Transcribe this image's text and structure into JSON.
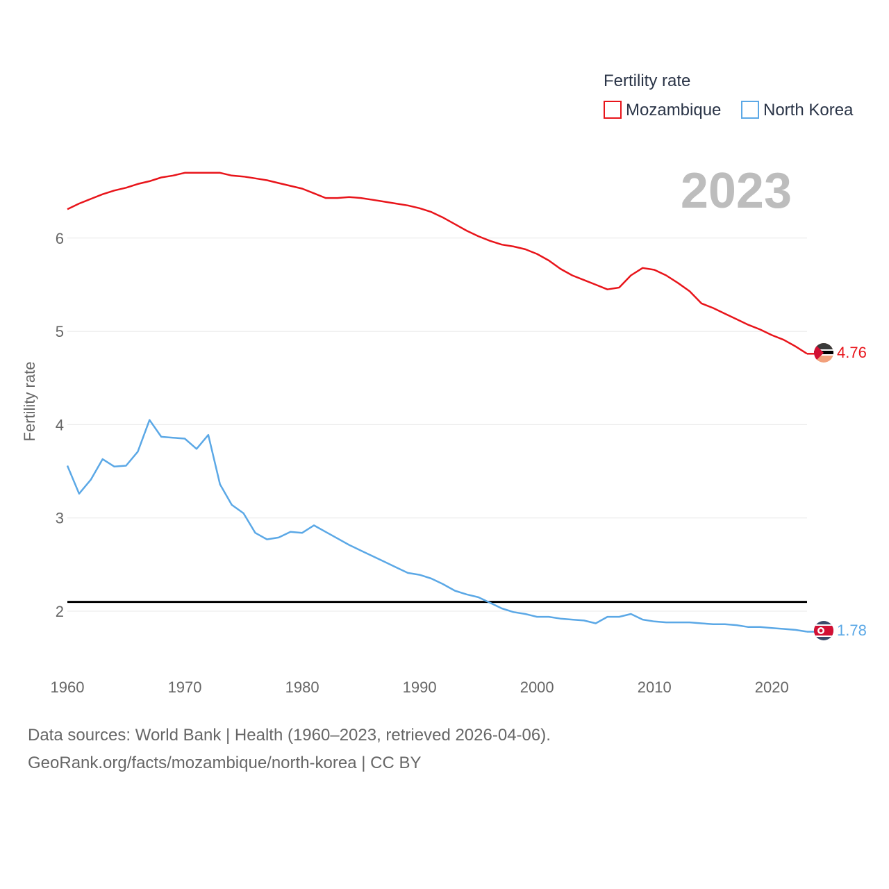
{
  "chart_data": {
    "type": "line",
    "title": "",
    "xlabel": "",
    "ylabel": "Fertility rate",
    "xlim": [
      1960,
      2023
    ],
    "ylim": [
      1.5,
      7.2
    ],
    "xticks": [
      1960,
      1970,
      1980,
      1990,
      2000,
      2010,
      2020
    ],
    "yticks": [
      2,
      3,
      4,
      5,
      6
    ],
    "reference_line": 2.1,
    "year_label": "2023",
    "legend_title": "Fertility rate",
    "x": [
      1960,
      1961,
      1962,
      1963,
      1964,
      1965,
      1966,
      1967,
      1968,
      1969,
      1970,
      1971,
      1972,
      1973,
      1974,
      1975,
      1976,
      1977,
      1978,
      1979,
      1980,
      1981,
      1982,
      1983,
      1984,
      1985,
      1986,
      1987,
      1988,
      1989,
      1990,
      1991,
      1992,
      1993,
      1994,
      1995,
      1996,
      1997,
      1998,
      1999,
      2000,
      2001,
      2002,
      2003,
      2004,
      2005,
      2006,
      2007,
      2008,
      2009,
      2010,
      2011,
      2012,
      2013,
      2014,
      2015,
      2016,
      2017,
      2018,
      2019,
      2020,
      2021,
      2022,
      2023
    ],
    "series": [
      {
        "name": "Mozambique",
        "color": "#e8141a",
        "end_label": "4.76",
        "values": [
          6.31,
          6.37,
          6.42,
          6.47,
          6.51,
          6.54,
          6.58,
          6.61,
          6.65,
          6.67,
          6.7,
          6.7,
          6.7,
          6.7,
          6.67,
          6.66,
          6.64,
          6.62,
          6.59,
          6.56,
          6.53,
          6.48,
          6.43,
          6.43,
          6.44,
          6.43,
          6.41,
          6.39,
          6.37,
          6.35,
          6.32,
          6.28,
          6.22,
          6.15,
          6.08,
          6.02,
          5.97,
          5.93,
          5.91,
          5.88,
          5.83,
          5.76,
          5.67,
          5.6,
          5.55,
          5.5,
          5.45,
          5.47,
          5.6,
          5.68,
          5.66,
          5.6,
          5.52,
          5.43,
          5.3,
          5.25,
          5.19,
          5.13,
          5.07,
          5.02,
          4.96,
          4.91,
          4.84,
          4.76
        ]
      },
      {
        "name": "North Korea",
        "color": "#5ba8e6",
        "end_label": "1.78",
        "values": [
          3.56,
          3.26,
          3.41,
          3.63,
          3.55,
          3.56,
          3.71,
          4.05,
          3.87,
          3.86,
          3.85,
          3.74,
          3.89,
          3.36,
          3.14,
          3.05,
          2.84,
          2.77,
          2.79,
          2.85,
          2.84,
          2.92,
          2.85,
          2.78,
          2.71,
          2.65,
          2.59,
          2.53,
          2.47,
          2.41,
          2.39,
          2.35,
          2.29,
          2.22,
          2.18,
          2.15,
          2.09,
          2.03,
          1.99,
          1.97,
          1.94,
          1.94,
          1.92,
          1.91,
          1.9,
          1.87,
          1.94,
          1.94,
          1.97,
          1.91,
          1.89,
          1.88,
          1.88,
          1.88,
          1.87,
          1.86,
          1.86,
          1.85,
          1.83,
          1.83,
          1.82,
          1.81,
          1.8,
          1.78
        ]
      }
    ]
  },
  "footer": {
    "sources": "Data sources: World Bank | Health (1960–2023, retrieved 2026-04-06).",
    "link": "GeoRank.org/facts/mozambique/north-korea | CC BY"
  }
}
